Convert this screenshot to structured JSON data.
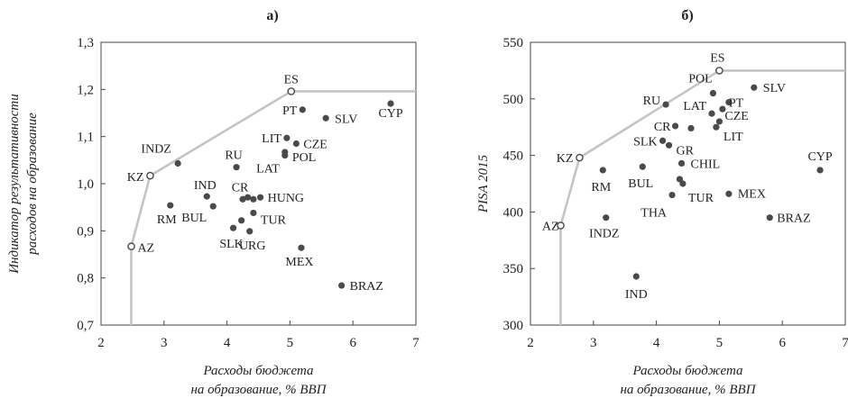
{
  "chart_data": [
    {
      "type": "scatter",
      "title": "а)",
      "xlabel": [
        "Расходы бюджета",
        "на образование, % ВВП"
      ],
      "ylabel": [
        "Индикатор результативности",
        "расходов на образование"
      ],
      "xlim": [
        2,
        7
      ],
      "ylim": [
        0.7,
        1.3
      ],
      "xticks": [
        "2",
        "3",
        "4",
        "5",
        "6",
        "7"
      ],
      "yticks": [
        "0,7",
        "0,8",
        "0,9",
        "1,0",
        "1,1",
        "1,2",
        "1,3"
      ],
      "grid": false,
      "frontier_color": "#c4c4c4",
      "point_color": "#4a4a4a",
      "frontier": [
        [
          2.48,
          0.7
        ],
        [
          2.48,
          0.867
        ],
        [
          2.78,
          1.017
        ],
        [
          5.02,
          1.196
        ],
        [
          7.0,
          1.196
        ]
      ],
      "points": [
        {
          "label": "ES",
          "x": 5.02,
          "y": 1.196,
          "frontier": true
        },
        {
          "label": "KZ",
          "x": 2.78,
          "y": 1.017,
          "frontier": true
        },
        {
          "label": "AZ",
          "x": 2.48,
          "y": 0.867,
          "frontier": true
        },
        {
          "label": "PT",
          "x": 5.2,
          "y": 1.157
        },
        {
          "label": "SLV",
          "x": 5.57,
          "y": 1.139
        },
        {
          "label": "CYP",
          "x": 6.6,
          "y": 1.17
        },
        {
          "label": "LIT",
          "x": 4.95,
          "y": 1.097
        },
        {
          "label": "CZE",
          "x": 5.1,
          "y": 1.085
        },
        {
          "label": "POL",
          "x": 4.92,
          "y": 1.067
        },
        {
          "label": "LAT",
          "x": 4.92,
          "y": 1.06
        },
        {
          "label": "RU",
          "x": 4.15,
          "y": 1.035
        },
        {
          "label": "INDZ",
          "x": 3.22,
          "y": 1.043
        },
        {
          "label": "IND",
          "x": 3.68,
          "y": 0.973
        },
        {
          "label": "CR",
          "x": 4.25,
          "y": 0.967
        },
        {
          "label": "",
          "x": 4.33,
          "y": 0.971
        },
        {
          "label": "",
          "x": 4.42,
          "y": 0.967
        },
        {
          "label": "HUNG",
          "x": 4.53,
          "y": 0.971
        },
        {
          "label": "RM",
          "x": 3.1,
          "y": 0.954
        },
        {
          "label": "BUL",
          "x": 3.78,
          "y": 0.952
        },
        {
          "label": "TUR",
          "x": 4.42,
          "y": 0.938
        },
        {
          "label": "",
          "x": 4.23,
          "y": 0.922
        },
        {
          "label": "SLK",
          "x": 4.1,
          "y": 0.906
        },
        {
          "label": "URG",
          "x": 4.36,
          "y": 0.899
        },
        {
          "label": "MEX",
          "x": 5.18,
          "y": 0.864
        },
        {
          "label": "BRAZ",
          "x": 5.82,
          "y": 0.784
        }
      ]
    },
    {
      "type": "scatter",
      "title": "б)",
      "xlabel": [
        "Расходы бюджета",
        "на образование, % ВВП"
      ],
      "ylabel": [
        "PISA 2015"
      ],
      "xlim": [
        2,
        7
      ],
      "ylim": [
        300,
        550
      ],
      "xticks": [
        "2",
        "3",
        "4",
        "5",
        "6",
        "7"
      ],
      "yticks": [
        "300",
        "350",
        "400",
        "450",
        "500",
        "550"
      ],
      "grid": false,
      "frontier_color": "#c4c4c4",
      "point_color": "#4a4a4a",
      "frontier": [
        [
          2.48,
          300
        ],
        [
          2.48,
          388
        ],
        [
          2.78,
          448
        ],
        [
          5.0,
          525
        ],
        [
          7.0,
          525
        ]
      ],
      "points": [
        {
          "label": "ES",
          "x": 5.0,
          "y": 525,
          "frontier": true
        },
        {
          "label": "KZ",
          "x": 2.78,
          "y": 448,
          "frontier": true
        },
        {
          "label": "AZ",
          "x": 2.48,
          "y": 388,
          "frontier": true
        },
        {
          "label": "POL",
          "x": 4.9,
          "y": 505
        },
        {
          "label": "SLV",
          "x": 5.55,
          "y": 510
        },
        {
          "label": "RU",
          "x": 4.15,
          "y": 495
        },
        {
          "label": "PT",
          "x": 5.15,
          "y": 497
        },
        {
          "label": "LAT",
          "x": 4.88,
          "y": 487
        },
        {
          "label": "",
          "x": 5.05,
          "y": 491
        },
        {
          "label": "CZE",
          "x": 5.0,
          "y": 480
        },
        {
          "label": "CR",
          "x": 4.3,
          "y": 476
        },
        {
          "label": "",
          "x": 4.55,
          "y": 474
        },
        {
          "label": "LIT",
          "x": 4.95,
          "y": 475
        },
        {
          "label": "SLK",
          "x": 4.1,
          "y": 463
        },
        {
          "label": "GR",
          "x": 4.2,
          "y": 459
        },
        {
          "label": "CHIL",
          "x": 4.4,
          "y": 443
        },
        {
          "label": "RM",
          "x": 3.15,
          "y": 437
        },
        {
          "label": "BUL",
          "x": 3.78,
          "y": 440
        },
        {
          "label": "CYP",
          "x": 6.6,
          "y": 437
        },
        {
          "label": "",
          "x": 4.37,
          "y": 429
        },
        {
          "label": "MEX",
          "x": 5.15,
          "y": 416
        },
        {
          "label": "TUR",
          "x": 4.42,
          "y": 425
        },
        {
          "label": "THA",
          "x": 4.25,
          "y": 415
        },
        {
          "label": "INDZ",
          "x": 3.2,
          "y": 395
        },
        {
          "label": "BRAZ",
          "x": 5.8,
          "y": 395
        },
        {
          "label": "IND",
          "x": 3.68,
          "y": 343
        }
      ]
    }
  ]
}
